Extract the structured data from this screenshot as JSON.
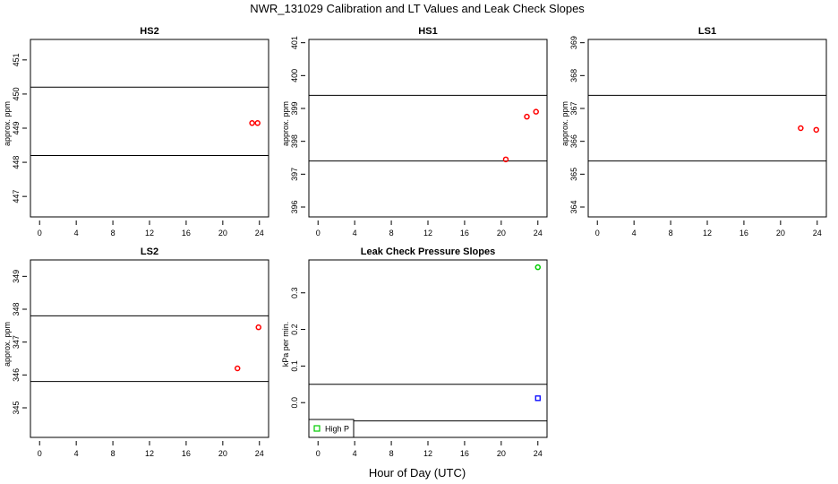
{
  "figure": {
    "title": "NWR_131029  Calibration and LT Values and Leak Check Slopes",
    "xlabel": "Hour of Day (UTC)"
  },
  "chart_data": [
    {
      "type": "scatter",
      "title": "HS2",
      "ylabel": "approx. ppm",
      "xlim": [
        -1,
        25
      ],
      "ylim": [
        446.4,
        451.6
      ],
      "xticks": [
        0,
        4,
        8,
        12,
        16,
        20,
        24
      ],
      "yticks": [
        447,
        448,
        449,
        450,
        451
      ],
      "hlines": [
        448.2,
        450.2
      ],
      "series": [
        {
          "color": "#ff0000",
          "marker": "circle",
          "points": [
            [
              23.2,
              449.15
            ],
            [
              23.8,
              449.15
            ]
          ]
        }
      ]
    },
    {
      "type": "scatter",
      "title": "HS1",
      "ylabel": "approx. ppm",
      "xlim": [
        -1,
        25
      ],
      "ylim": [
        395.7,
        401.1
      ],
      "xticks": [
        0,
        4,
        8,
        12,
        16,
        20,
        24
      ],
      "yticks": [
        396,
        397,
        398,
        399,
        400,
        401
      ],
      "hlines": [
        397.4,
        399.4
      ],
      "series": [
        {
          "color": "#ff0000",
          "marker": "circle",
          "points": [
            [
              20.5,
              397.45
            ],
            [
              22.8,
              398.75
            ],
            [
              23.8,
              398.9
            ]
          ]
        }
      ]
    },
    {
      "type": "scatter",
      "title": "LS1",
      "ylabel": "approx. ppm",
      "xlim": [
        -1,
        25
      ],
      "ylim": [
        363.7,
        369.1
      ],
      "xticks": [
        0,
        4,
        8,
        12,
        16,
        20,
        24
      ],
      "yticks": [
        364,
        365,
        366,
        367,
        368,
        369
      ],
      "hlines": [
        365.4,
        367.4
      ],
      "series": [
        {
          "color": "#ff0000",
          "marker": "circle",
          "points": [
            [
              22.2,
              366.4
            ],
            [
              23.9,
              366.35
            ]
          ]
        }
      ]
    },
    {
      "type": "scatter",
      "title": "LS2",
      "ylabel": "approx. ppm",
      "xlim": [
        -1,
        25
      ],
      "ylim": [
        344.1,
        349.5
      ],
      "xticks": [
        0,
        4,
        8,
        12,
        16,
        20,
        24
      ],
      "yticks": [
        345,
        346,
        347,
        348,
        349
      ],
      "hlines": [
        345.8,
        347.8
      ],
      "series": [
        {
          "color": "#ff0000",
          "marker": "circle",
          "points": [
            [
              21.6,
              346.2
            ],
            [
              23.9,
              347.45
            ]
          ]
        }
      ]
    },
    {
      "type": "scatter",
      "title": "Leak Check Pressure Slopes",
      "ylabel": "kPa per min.",
      "xlim": [
        -1,
        25
      ],
      "ylim": [
        -0.095,
        0.39
      ],
      "xticks": [
        0,
        4,
        8,
        12,
        16,
        20,
        24
      ],
      "yticks": [
        0.0,
        0.1,
        0.2,
        0.3
      ],
      "ytick_labels": [
        "0.0",
        "0.1",
        "0.2",
        "0.3"
      ],
      "hlines": [
        0.05,
        -0.05
      ],
      "legend": {
        "position": "bottom-left",
        "entries": [
          {
            "label": "High P",
            "color": "#00cc00",
            "marker": "square"
          }
        ]
      },
      "series": [
        {
          "name": "High P",
          "color": "#00cc00",
          "marker": "circle",
          "points": [
            [
              24.0,
              0.37
            ]
          ]
        },
        {
          "color": "#0000ff",
          "marker": "square",
          "points": [
            [
              24.0,
              0.012
            ]
          ]
        }
      ]
    }
  ]
}
